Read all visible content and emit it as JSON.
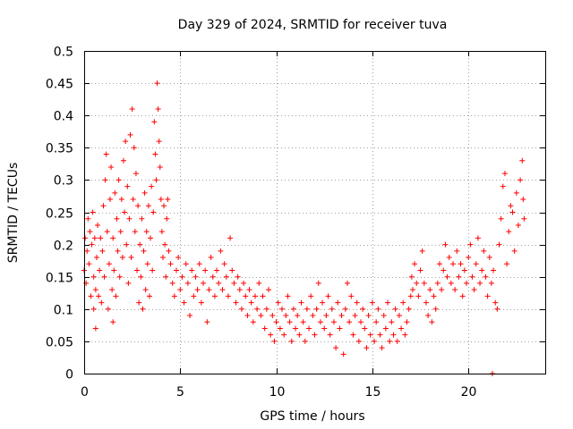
{
  "chart_data": {
    "type": "scatter",
    "title": "Day 329 of 2024, SRMTID for receiver tuva",
    "xlabel": "GPS time / hours",
    "ylabel": "SRMTID / TECUs",
    "xlim": [
      0,
      24
    ],
    "ylim": [
      0,
      0.5
    ],
    "x_ticks": [
      0,
      5,
      10,
      15,
      20
    ],
    "y_ticks": [
      0,
      0.05,
      0.1,
      0.15,
      0.2,
      0.25,
      0.3,
      0.35,
      0.4,
      0.45,
      0.5
    ],
    "x_tick_labels": [
      "0",
      "5",
      "10",
      "15",
      "20"
    ],
    "y_tick_labels": [
      "0",
      "0.05",
      "0.1",
      "0.15",
      "0.2",
      "0.25",
      "0.3",
      "0.35",
      "0.4",
      "0.45",
      "0.5"
    ],
    "grid": true,
    "marker": "+",
    "color": "#ff0000",
    "series": [
      {
        "points": [
          [
            0.0,
            0.16
          ],
          [
            0.05,
            0.21
          ],
          [
            0.1,
            0.14
          ],
          [
            0.15,
            0.19
          ],
          [
            0.2,
            0.24
          ],
          [
            0.25,
            0.17
          ],
          [
            0.3,
            0.22
          ],
          [
            0.35,
            0.12
          ],
          [
            0.4,
            0.2
          ],
          [
            0.45,
            0.25
          ],
          [
            0.5,
            0.1
          ],
          [
            0.5,
            0.15
          ],
          [
            0.55,
            0.21
          ],
          [
            0.6,
            0.07
          ],
          [
            0.6,
            0.13
          ],
          [
            0.65,
            0.18
          ],
          [
            0.7,
            0.23
          ],
          [
            0.75,
            0.12
          ],
          [
            0.8,
            0.16
          ],
          [
            0.85,
            0.21
          ],
          [
            0.9,
            0.11
          ],
          [
            0.95,
            0.19
          ],
          [
            1.0,
            0.26
          ],
          [
            1.05,
            0.15
          ],
          [
            1.1,
            0.3
          ],
          [
            1.15,
            0.34
          ],
          [
            1.2,
            0.22
          ],
          [
            1.25,
            0.1
          ],
          [
            1.3,
            0.17
          ],
          [
            1.35,
            0.27
          ],
          [
            1.4,
            0.32
          ],
          [
            1.45,
            0.13
          ],
          [
            1.5,
            0.08
          ],
          [
            1.5,
            0.21
          ],
          [
            1.55,
            0.16
          ],
          [
            1.6,
            0.28
          ],
          [
            1.65,
            0.12
          ],
          [
            1.7,
            0.24
          ],
          [
            1.75,
            0.19
          ],
          [
            1.8,
            0.3
          ],
          [
            1.85,
            0.15
          ],
          [
            1.9,
            0.22
          ],
          [
            1.95,
            0.27
          ],
          [
            2.0,
            0.18
          ],
          [
            2.05,
            0.33
          ],
          [
            2.1,
            0.25
          ],
          [
            2.15,
            0.36
          ],
          [
            2.2,
            0.2
          ],
          [
            2.25,
            0.29
          ],
          [
            2.3,
            0.14
          ],
          [
            2.35,
            0.24
          ],
          [
            2.4,
            0.37
          ],
          [
            2.45,
            0.18
          ],
          [
            2.5,
            0.41
          ],
          [
            2.55,
            0.27
          ],
          [
            2.6,
            0.35
          ],
          [
            2.65,
            0.22
          ],
          [
            2.7,
            0.31
          ],
          [
            2.75,
            0.16
          ],
          [
            2.8,
            0.26
          ],
          [
            2.85,
            0.11
          ],
          [
            2.9,
            0.2
          ],
          [
            2.95,
            0.15
          ],
          [
            3.0,
            0.24
          ],
          [
            3.05,
            0.1
          ],
          [
            3.1,
            0.19
          ],
          [
            3.15,
            0.28
          ],
          [
            3.2,
            0.13
          ],
          [
            3.25,
            0.22
          ],
          [
            3.3,
            0.17
          ],
          [
            3.35,
            0.26
          ],
          [
            3.4,
            0.12
          ],
          [
            3.45,
            0.21
          ],
          [
            3.5,
            0.29
          ],
          [
            3.55,
            0.16
          ],
          [
            3.6,
            0.25
          ],
          [
            3.65,
            0.39
          ],
          [
            3.7,
            0.34
          ],
          [
            3.75,
            0.3
          ],
          [
            3.8,
            0.45
          ],
          [
            3.85,
            0.41
          ],
          [
            3.9,
            0.36
          ],
          [
            3.95,
            0.32
          ],
          [
            4.0,
            0.27
          ],
          [
            4.05,
            0.22
          ],
          [
            4.1,
            0.18
          ],
          [
            4.15,
            0.26
          ],
          [
            4.2,
            0.2
          ],
          [
            4.25,
            0.15
          ],
          [
            4.3,
            0.24
          ],
          [
            4.35,
            0.27
          ],
          [
            4.4,
            0.19
          ],
          [
            4.5,
            0.17
          ],
          [
            4.6,
            0.14
          ],
          [
            4.7,
            0.12
          ],
          [
            4.8,
            0.16
          ],
          [
            4.9,
            0.18
          ],
          [
            5.0,
            0.13
          ],
          [
            5.1,
            0.15
          ],
          [
            5.2,
            0.11
          ],
          [
            5.3,
            0.17
          ],
          [
            5.4,
            0.14
          ],
          [
            5.5,
            0.09
          ],
          [
            5.6,
            0.16
          ],
          [
            5.7,
            0.12
          ],
          [
            5.8,
            0.15
          ],
          [
            5.9,
            0.13
          ],
          [
            6.0,
            0.17
          ],
          [
            6.1,
            0.11
          ],
          [
            6.2,
            0.14
          ],
          [
            6.3,
            0.16
          ],
          [
            6.4,
            0.08
          ],
          [
            6.5,
            0.13
          ],
          [
            6.6,
            0.18
          ],
          [
            6.7,
            0.15
          ],
          [
            6.8,
            0.12
          ],
          [
            6.9,
            0.16
          ],
          [
            7.0,
            0.14
          ],
          [
            7.1,
            0.19
          ],
          [
            7.2,
            0.13
          ],
          [
            7.3,
            0.17
          ],
          [
            7.4,
            0.15
          ],
          [
            7.5,
            0.12
          ],
          [
            7.6,
            0.21
          ],
          [
            7.7,
            0.16
          ],
          [
            7.8,
            0.14
          ],
          [
            7.9,
            0.11
          ],
          [
            8.0,
            0.15
          ],
          [
            8.1,
            0.13
          ],
          [
            8.2,
            0.1
          ],
          [
            8.3,
            0.14
          ],
          [
            8.4,
            0.12
          ],
          [
            8.5,
            0.09
          ],
          [
            8.6,
            0.13
          ],
          [
            8.7,
            0.11
          ],
          [
            8.8,
            0.08
          ],
          [
            8.9,
            0.12
          ],
          [
            9.0,
            0.1
          ],
          [
            9.1,
            0.14
          ],
          [
            9.2,
            0.09
          ],
          [
            9.3,
            0.12
          ],
          [
            9.4,
            0.07
          ],
          [
            9.5,
            0.1
          ],
          [
            9.6,
            0.13
          ],
          [
            9.7,
            0.06
          ],
          [
            9.8,
            0.09
          ],
          [
            9.9,
            0.05
          ],
          [
            10.0,
            0.08
          ],
          [
            10.1,
            0.11
          ],
          [
            10.2,
            0.07
          ],
          [
            10.3,
            0.1
          ],
          [
            10.4,
            0.06
          ],
          [
            10.5,
            0.09
          ],
          [
            10.6,
            0.12
          ],
          [
            10.7,
            0.08
          ],
          [
            10.8,
            0.05
          ],
          [
            10.9,
            0.1
          ],
          [
            11.0,
            0.07
          ],
          [
            11.1,
            0.09
          ],
          [
            11.2,
            0.06
          ],
          [
            11.3,
            0.11
          ],
          [
            11.4,
            0.08
          ],
          [
            11.5,
            0.05
          ],
          [
            11.6,
            0.1
          ],
          [
            11.7,
            0.07
          ],
          [
            11.8,
            0.12
          ],
          [
            11.9,
            0.09
          ],
          [
            12.0,
            0.06
          ],
          [
            12.1,
            0.1
          ],
          [
            12.2,
            0.14
          ],
          [
            12.3,
            0.08
          ],
          [
            12.4,
            0.11
          ],
          [
            12.5,
            0.07
          ],
          [
            12.6,
            0.09
          ],
          [
            12.7,
            0.12
          ],
          [
            12.8,
            0.06
          ],
          [
            12.9,
            0.1
          ],
          [
            13.0,
            0.08
          ],
          [
            13.1,
            0.04
          ],
          [
            13.2,
            0.11
          ],
          [
            13.3,
            0.07
          ],
          [
            13.4,
            0.09
          ],
          [
            13.5,
            0.03
          ],
          [
            13.6,
            0.1
          ],
          [
            13.7,
            0.14
          ],
          [
            13.8,
            0.08
          ],
          [
            13.9,
            0.12
          ],
          [
            14.0,
            0.06
          ],
          [
            14.1,
            0.09
          ],
          [
            14.2,
            0.11
          ],
          [
            14.3,
            0.05
          ],
          [
            14.4,
            0.08
          ],
          [
            14.5,
            0.1
          ],
          [
            14.6,
            0.07
          ],
          [
            14.7,
            0.04
          ],
          [
            14.8,
            0.09
          ],
          [
            14.9,
            0.06
          ],
          [
            15.0,
            0.11
          ],
          [
            15.1,
            0.05
          ],
          [
            15.2,
            0.08
          ],
          [
            15.3,
            0.1
          ],
          [
            15.4,
            0.06
          ],
          [
            15.5,
            0.04
          ],
          [
            15.6,
            0.09
          ],
          [
            15.7,
            0.07
          ],
          [
            15.8,
            0.11
          ],
          [
            15.9,
            0.05
          ],
          [
            16.0,
            0.08
          ],
          [
            16.1,
            0.06
          ],
          [
            16.2,
            0.1
          ],
          [
            16.3,
            0.05
          ],
          [
            16.4,
            0.09
          ],
          [
            16.5,
            0.07
          ],
          [
            16.6,
            0.11
          ],
          [
            16.7,
            0.06
          ],
          [
            16.8,
            0.08
          ],
          [
            16.9,
            0.1
          ],
          [
            17.0,
            0.12
          ],
          [
            17.05,
            0.15
          ],
          [
            17.1,
            0.13
          ],
          [
            17.2,
            0.17
          ],
          [
            17.3,
            0.14
          ],
          [
            17.4,
            0.12
          ],
          [
            17.5,
            0.16
          ],
          [
            17.6,
            0.19
          ],
          [
            17.7,
            0.14
          ],
          [
            17.8,
            0.11
          ],
          [
            17.9,
            0.09
          ],
          [
            18.0,
            0.13
          ],
          [
            18.1,
            0.08
          ],
          [
            18.2,
            0.12
          ],
          [
            18.3,
            0.1
          ],
          [
            18.4,
            0.14
          ],
          [
            18.5,
            0.17
          ],
          [
            18.6,
            0.13
          ],
          [
            18.7,
            0.16
          ],
          [
            18.8,
            0.2
          ],
          [
            18.9,
            0.15
          ],
          [
            19.0,
            0.18
          ],
          [
            19.1,
            0.14
          ],
          [
            19.2,
            0.17
          ],
          [
            19.3,
            0.13
          ],
          [
            19.4,
            0.19
          ],
          [
            19.5,
            0.15
          ],
          [
            19.6,
            0.17
          ],
          [
            19.7,
            0.12
          ],
          [
            19.8,
            0.16
          ],
          [
            19.9,
            0.14
          ],
          [
            20.0,
            0.18
          ],
          [
            20.1,
            0.2
          ],
          [
            20.2,
            0.15
          ],
          [
            20.3,
            0.13
          ],
          [
            20.4,
            0.17
          ],
          [
            20.5,
            0.21
          ],
          [
            20.6,
            0.14
          ],
          [
            20.7,
            0.16
          ],
          [
            20.8,
            0.19
          ],
          [
            20.9,
            0.15
          ],
          [
            21.0,
            0.12
          ],
          [
            21.1,
            0.18
          ],
          [
            21.2,
            0.14
          ],
          [
            21.3,
            0.16
          ],
          [
            21.4,
            0.11
          ],
          [
            21.5,
            0.1
          ],
          [
            21.6,
            0.2
          ],
          [
            21.7,
            0.24
          ],
          [
            21.8,
            0.29
          ],
          [
            21.9,
            0.31
          ],
          [
            22.0,
            0.17
          ],
          [
            22.1,
            0.22
          ],
          [
            22.2,
            0.26
          ],
          [
            22.3,
            0.25
          ],
          [
            22.4,
            0.19
          ],
          [
            22.5,
            0.28
          ],
          [
            22.6,
            0.23
          ],
          [
            22.7,
            0.3
          ],
          [
            22.8,
            0.33
          ],
          [
            22.85,
            0.27
          ],
          [
            22.9,
            0.24
          ],
          [
            21.25,
            0.0
          ]
        ]
      }
    ]
  }
}
